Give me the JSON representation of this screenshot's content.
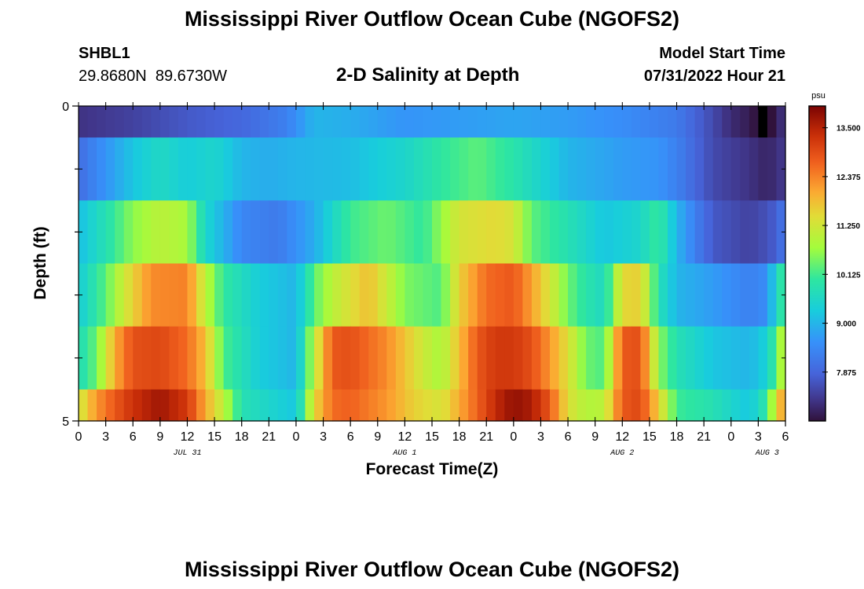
{
  "header": {
    "title": "Mississippi River Outflow Ocean Cube (NGOFS2)",
    "station_id": "SHBL1",
    "station_coords": "29.8680N  89.6730W",
    "subtitle": "2-D Salinity at Depth",
    "model_start_label": "Model Start Time",
    "model_start_value": "07/31/2022 Hour 21"
  },
  "footer": {
    "title": "Mississippi River Outflow Ocean Cube (NGOFS2)"
  },
  "chart_data": {
    "type": "heatmap",
    "title": "2-D Salinity at Depth",
    "xlabel": "Forecast Time(Z)",
    "ylabel": "Depth (ft)",
    "x_hours": [
      0,
      78
    ],
    "x_step_hours": 1,
    "xtick_labels": [
      "0",
      "3",
      "6",
      "9",
      "12",
      "15",
      "18",
      "21",
      "0",
      "3",
      "6",
      "9",
      "12",
      "15",
      "18",
      "21",
      "0",
      "3",
      "6",
      "9",
      "12",
      "15",
      "18",
      "21",
      "0",
      "3",
      "6"
    ],
    "date_labels": [
      {
        "text": "JUL 31",
        "hour": 12
      },
      {
        "text": "AUG 1",
        "hour": 36
      },
      {
        "text": "AUG 2",
        "hour": 60
      },
      {
        "text": "AUG 3",
        "hour": 76
      }
    ],
    "ylim": [
      0,
      5
    ],
    "ytick_labels": [
      "0",
      "5"
    ],
    "depth_layers": [
      {
        "from": 0,
        "to": 0.5
      },
      {
        "from": 0.5,
        "to": 1.5
      },
      {
        "from": 1.5,
        "to": 2.5
      },
      {
        "from": 2.5,
        "to": 3.5
      },
      {
        "from": 3.5,
        "to": 4.5
      },
      {
        "from": 4.5,
        "to": 5
      }
    ],
    "keyframes": [
      [
        [
          0,
          7.2
        ],
        [
          6,
          7.4
        ],
        [
          12,
          7.7
        ],
        [
          18,
          7.9
        ],
        [
          23,
          8.3
        ],
        [
          26,
          9.0
        ],
        [
          30,
          8.9
        ],
        [
          36,
          8.6
        ],
        [
          42,
          8.7
        ],
        [
          48,
          8.8
        ],
        [
          54,
          8.7
        ],
        [
          60,
          8.5
        ],
        [
          66,
          8.2
        ],
        [
          70,
          7.5
        ],
        [
          72,
          7.1
        ],
        [
          74,
          6.9
        ],
        [
          76,
          6.5
        ],
        [
          77,
          7.0
        ],
        [
          78,
          7.2
        ]
      ],
      [
        [
          0,
          8.0
        ],
        [
          3,
          8.6
        ],
        [
          6,
          9.2
        ],
        [
          9,
          9.6
        ],
        [
          12,
          9.3
        ],
        [
          15,
          9.5
        ],
        [
          18,
          9.0
        ],
        [
          21,
          8.9
        ],
        [
          24,
          9.0
        ],
        [
          30,
          9.1
        ],
        [
          36,
          9.5
        ],
        [
          40,
          10.0
        ],
        [
          44,
          10.3
        ],
        [
          48,
          9.9
        ],
        [
          54,
          9.0
        ],
        [
          60,
          8.7
        ],
        [
          64,
          8.6
        ],
        [
          66,
          8.3
        ],
        [
          70,
          7.5
        ],
        [
          74,
          7.2
        ],
        [
          76,
          7.0
        ],
        [
          78,
          7.3
        ]
      ],
      [
        [
          0,
          9.1
        ],
        [
          3,
          9.8
        ],
        [
          6,
          10.6
        ],
        [
          9,
          11.0
        ],
        [
          12,
          10.8
        ],
        [
          14,
          9.5
        ],
        [
          18,
          8.4
        ],
        [
          22,
          8.2
        ],
        [
          26,
          8.9
        ],
        [
          30,
          10.1
        ],
        [
          34,
          10.4
        ],
        [
          38,
          10.0
        ],
        [
          42,
          11.3
        ],
        [
          46,
          11.5
        ],
        [
          48,
          11.3
        ],
        [
          50,
          10.3
        ],
        [
          54,
          9.8
        ],
        [
          58,
          9.2
        ],
        [
          62,
          9.5
        ],
        [
          64,
          10.1
        ],
        [
          66,
          9.0
        ],
        [
          68,
          8.3
        ],
        [
          70,
          7.7
        ],
        [
          74,
          7.4
        ],
        [
          76,
          7.6
        ],
        [
          77,
          7.8
        ],
        [
          78,
          8.2
        ]
      ],
      [
        [
          0,
          9.3
        ],
        [
          3,
          10.3
        ],
        [
          5,
          11.2
        ],
        [
          8,
          12.3
        ],
        [
          12,
          12.4
        ],
        [
          14,
          11.0
        ],
        [
          16,
          10.0
        ],
        [
          20,
          9.3
        ],
        [
          24,
          9.0
        ],
        [
          26,
          10.3
        ],
        [
          28,
          11.0
        ],
        [
          32,
          11.8
        ],
        [
          36,
          10.5
        ],
        [
          40,
          10.2
        ],
        [
          42,
          11.6
        ],
        [
          45,
          12.6
        ],
        [
          48,
          12.8
        ],
        [
          50,
          12.1
        ],
        [
          52,
          11.3
        ],
        [
          54,
          10.4
        ],
        [
          56,
          9.9
        ],
        [
          58,
          9.6
        ],
        [
          60,
          11.5
        ],
        [
          62,
          11.6
        ],
        [
          64,
          9.8
        ],
        [
          66,
          9.0
        ],
        [
          70,
          8.7
        ],
        [
          74,
          8.3
        ],
        [
          76,
          8.5
        ],
        [
          77,
          9.6
        ],
        [
          78,
          10.2
        ]
      ],
      [
        [
          0,
          9.7
        ],
        [
          2,
          10.4
        ],
        [
          4,
          12.0
        ],
        [
          6,
          12.9
        ],
        [
          9,
          13.0
        ],
        [
          12,
          12.6
        ],
        [
          14,
          11.8
        ],
        [
          16,
          10.2
        ],
        [
          20,
          9.3
        ],
        [
          24,
          9.0
        ],
        [
          26,
          11.0
        ],
        [
          28,
          12.8
        ],
        [
          30,
          12.9
        ],
        [
          34,
          12.3
        ],
        [
          38,
          11.2
        ],
        [
          40,
          10.8
        ],
        [
          44,
          12.8
        ],
        [
          46,
          13.2
        ],
        [
          48,
          13.2
        ],
        [
          50,
          12.9
        ],
        [
          52,
          12.2
        ],
        [
          54,
          11.4
        ],
        [
          56,
          10.4
        ],
        [
          58,
          10.2
        ],
        [
          60,
          12.8
        ],
        [
          62,
          12.9
        ],
        [
          64,
          10.6
        ],
        [
          66,
          9.8
        ],
        [
          70,
          9.2
        ],
        [
          74,
          9.0
        ],
        [
          76,
          9.4
        ],
        [
          77,
          10.3
        ],
        [
          78,
          11.3
        ]
      ],
      [
        [
          0,
          11.2
        ],
        [
          2,
          12.2
        ],
        [
          4,
          12.8
        ],
        [
          6,
          13.3
        ],
        [
          9,
          13.7
        ],
        [
          12,
          13.2
        ],
        [
          14,
          12.0
        ],
        [
          16,
          11.0
        ],
        [
          18,
          9.8
        ],
        [
          24,
          9.2
        ],
        [
          26,
          11.5
        ],
        [
          28,
          12.6
        ],
        [
          30,
          12.7
        ],
        [
          34,
          12.2
        ],
        [
          37,
          11.6
        ],
        [
          40,
          11.3
        ],
        [
          42,
          12.0
        ],
        [
          46,
          13.4
        ],
        [
          48,
          13.8
        ],
        [
          50,
          13.6
        ],
        [
          52,
          12.8
        ],
        [
          54,
          11.4
        ],
        [
          56,
          10.9
        ],
        [
          58,
          11.0
        ],
        [
          60,
          12.8
        ],
        [
          62,
          13.0
        ],
        [
          64,
          11.6
        ],
        [
          66,
          10.1
        ],
        [
          70,
          9.8
        ],
        [
          74,
          9.2
        ],
        [
          76,
          10.0
        ],
        [
          77,
          11.5
        ],
        [
          78,
          12.3
        ]
      ]
    ],
    "missing_cells": [
      {
        "layer": 0,
        "hour": 75
      }
    ],
    "colorbar": {
      "unit": "psu",
      "min": 6.75,
      "max": 14.0,
      "tick_values": [
        7.875,
        9.0,
        10.125,
        11.25,
        12.375,
        13.5
      ],
      "tick_labels": [
        "7.875",
        "9.000",
        "10.125",
        "11.250",
        "12.375",
        "13.500"
      ]
    }
  }
}
